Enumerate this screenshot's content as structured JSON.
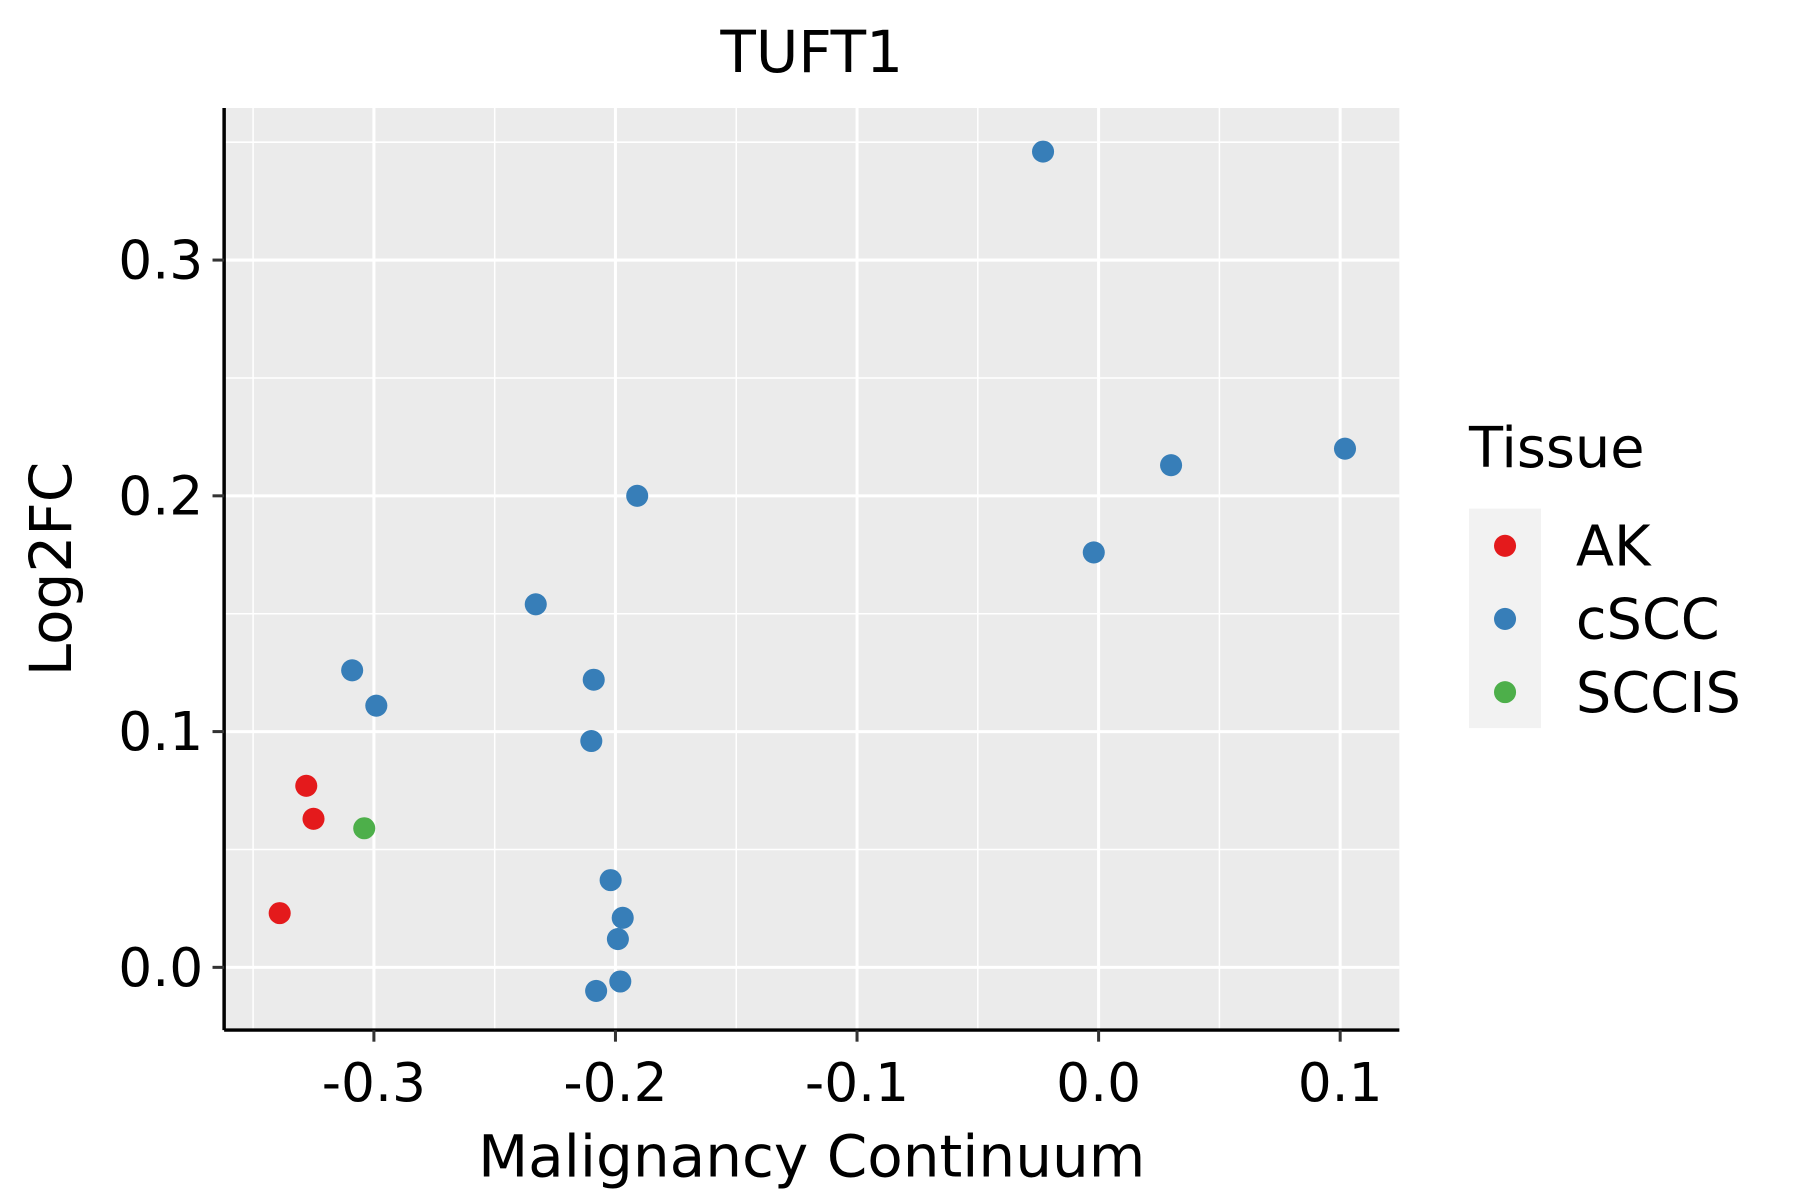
{
  "chart_data": {
    "type": "scatter",
    "title": "TUFT1",
    "xlabel": "Malignancy Continuum",
    "ylabel": "Log2FC",
    "xlim": [
      -0.362,
      0.1245
    ],
    "ylim": [
      -0.0266,
      0.3645
    ],
    "xticks": [
      -0.3,
      -0.2,
      -0.1,
      0.0,
      0.1
    ],
    "xtick_labels": [
      "-0.3",
      "-0.2",
      "-0.1",
      "0.0",
      "0.1"
    ],
    "yticks": [
      0.0,
      0.1,
      0.2,
      0.3
    ],
    "ytick_labels": [
      "0.0",
      "0.1",
      "0.2",
      "0.3"
    ],
    "grid": true,
    "legend": {
      "title": "Tissue",
      "position": "right",
      "entries": [
        {
          "label": "AK",
          "color": "#E41A1C"
        },
        {
          "label": "cSCC",
          "color": "#377EB8"
        },
        {
          "label": "SCCIS",
          "color": "#4DAF4A"
        }
      ]
    },
    "series": [
      {
        "name": "AK",
        "color": "#E41A1C",
        "points": [
          [
            -0.328,
            0.077
          ],
          [
            -0.325,
            0.063
          ],
          [
            -0.339,
            0.023
          ]
        ]
      },
      {
        "name": "cSCC",
        "color": "#377EB8",
        "points": [
          [
            -0.023,
            0.346
          ],
          [
            0.03,
            0.213
          ],
          [
            0.102,
            0.22
          ],
          [
            -0.002,
            0.176
          ],
          [
            -0.191,
            0.2
          ],
          [
            -0.233,
            0.154
          ],
          [
            -0.309,
            0.126
          ],
          [
            -0.299,
            0.111
          ],
          [
            -0.209,
            0.122
          ],
          [
            -0.21,
            0.096
          ],
          [
            -0.202,
            0.037
          ],
          [
            -0.197,
            0.021
          ],
          [
            -0.199,
            0.012
          ],
          [
            -0.198,
            -0.006
          ],
          [
            -0.208,
            -0.01
          ]
        ]
      },
      {
        "name": "SCCIS",
        "color": "#4DAF4A",
        "points": [
          [
            -0.304,
            0.059
          ]
        ]
      }
    ]
  }
}
